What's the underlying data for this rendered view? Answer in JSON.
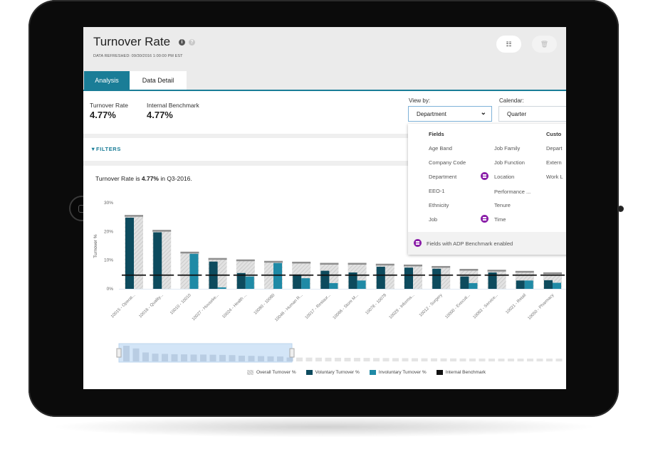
{
  "header": {
    "title": "Turnover Rate",
    "info_icon": "info-icon",
    "help_icon": "help-icon",
    "refreshed": "DATA REFRESHED: 09/30/2016 1:00:00 PM EST",
    "buttons": [
      {
        "icon": "settings-sliders-icon"
      },
      {
        "icon": "trash-icon"
      }
    ]
  },
  "tabs": [
    {
      "label": "Analysis",
      "active": true
    },
    {
      "label": "Data Detail",
      "active": false
    }
  ],
  "metrics": [
    {
      "label": "Turnover Rate",
      "value": "4.77%"
    },
    {
      "label": "Internal Benchmark",
      "value": "4.77%"
    }
  ],
  "controls": {
    "view_by_label": "View by:",
    "view_by_value": "Department",
    "calendar_label": "Calendar:",
    "calendar_value": "Quarter"
  },
  "dropdown": {
    "fields_header": "Fields",
    "col1": [
      "Age Band",
      "Company Code",
      "Department",
      "EEO-1",
      "Ethnicity",
      "Job"
    ],
    "col2": [
      {
        "label": "Job Family",
        "benchmark": false
      },
      {
        "label": "Job Function",
        "benchmark": false
      },
      {
        "label": "Location",
        "benchmark": true
      },
      {
        "label": "Performance ...",
        "benchmark": false
      },
      {
        "label": "Tenure",
        "benchmark": false
      },
      {
        "label": "Time",
        "benchmark": true
      }
    ],
    "col3_header": "Custo",
    "col3": [
      "Depart",
      "Extern",
      "Work L"
    ],
    "footer": "Fields with ADP Benchmark enabled",
    "benchmark_color": "#8a1fa8"
  },
  "filters_label": "FILTERS",
  "summary": {
    "prefix": "Turnover Rate is ",
    "value": "4.77%",
    "suffix": " in Q3-2016."
  },
  "colors": {
    "accent": "#1a7d97",
    "voluntary": "#0d4b5e",
    "involuntary": "#1f8aa6",
    "overall": "#d6d6d6",
    "benchmark": "#111111"
  },
  "chart_data": {
    "type": "bar",
    "ylabel": "Turnover %",
    "ylim": [
      0,
      30
    ],
    "yticks": [
      "0%",
      "10%",
      "20%",
      "30%"
    ],
    "categories": [
      "10015 - Operat...",
      "10016 - Quality...",
      "10010 - 10010",
      "10027 - Houseke...",
      "10024 - Health ...",
      "10080 - 10080",
      "10046 - Human R...",
      "10017 - Restaur...",
      "10066 - Store M...",
      "10078 - 10078",
      "10029 - Informa...",
      "10012 - Surgery",
      "10000 - Executi...",
      "10063 - Service...",
      "10021 - Retail",
      "10050 - Pharmacy",
      "10047 - O"
    ],
    "series": [
      {
        "name": "Overall Turnover %",
        "values": [
          25.5,
          20.3,
          12.7,
          10.5,
          10.0,
          9.5,
          9.2,
          8.8,
          8.8,
          8.5,
          8.2,
          7.7,
          6.7,
          6.4,
          6.0,
          5.5,
          5.2
        ]
      },
      {
        "name": "Voluntary Turnover %",
        "values": [
          24.8,
          19.7,
          0,
          9.5,
          5.5,
          0,
          5.0,
          6.3,
          5.7,
          7.7,
          7.4,
          7.0,
          4.3,
          5.7,
          2.9,
          3.0,
          3.0
        ]
      },
      {
        "name": "Involuntary Turnover %",
        "values": [
          0,
          0,
          12.2,
          0.5,
          4.3,
          9.0,
          3.7,
          2.0,
          2.9,
          0,
          0,
          0,
          2.0,
          0,
          2.9,
          2.1,
          2.0
        ]
      },
      {
        "name": "Internal Benchmark",
        "values": [
          4.77,
          4.77,
          4.77,
          4.77,
          4.77,
          4.77,
          4.77,
          4.77,
          4.77,
          4.77,
          4.77,
          4.77,
          4.77,
          4.77,
          4.77,
          4.77,
          4.77
        ]
      }
    ],
    "legend": "bottom",
    "grid": false
  }
}
